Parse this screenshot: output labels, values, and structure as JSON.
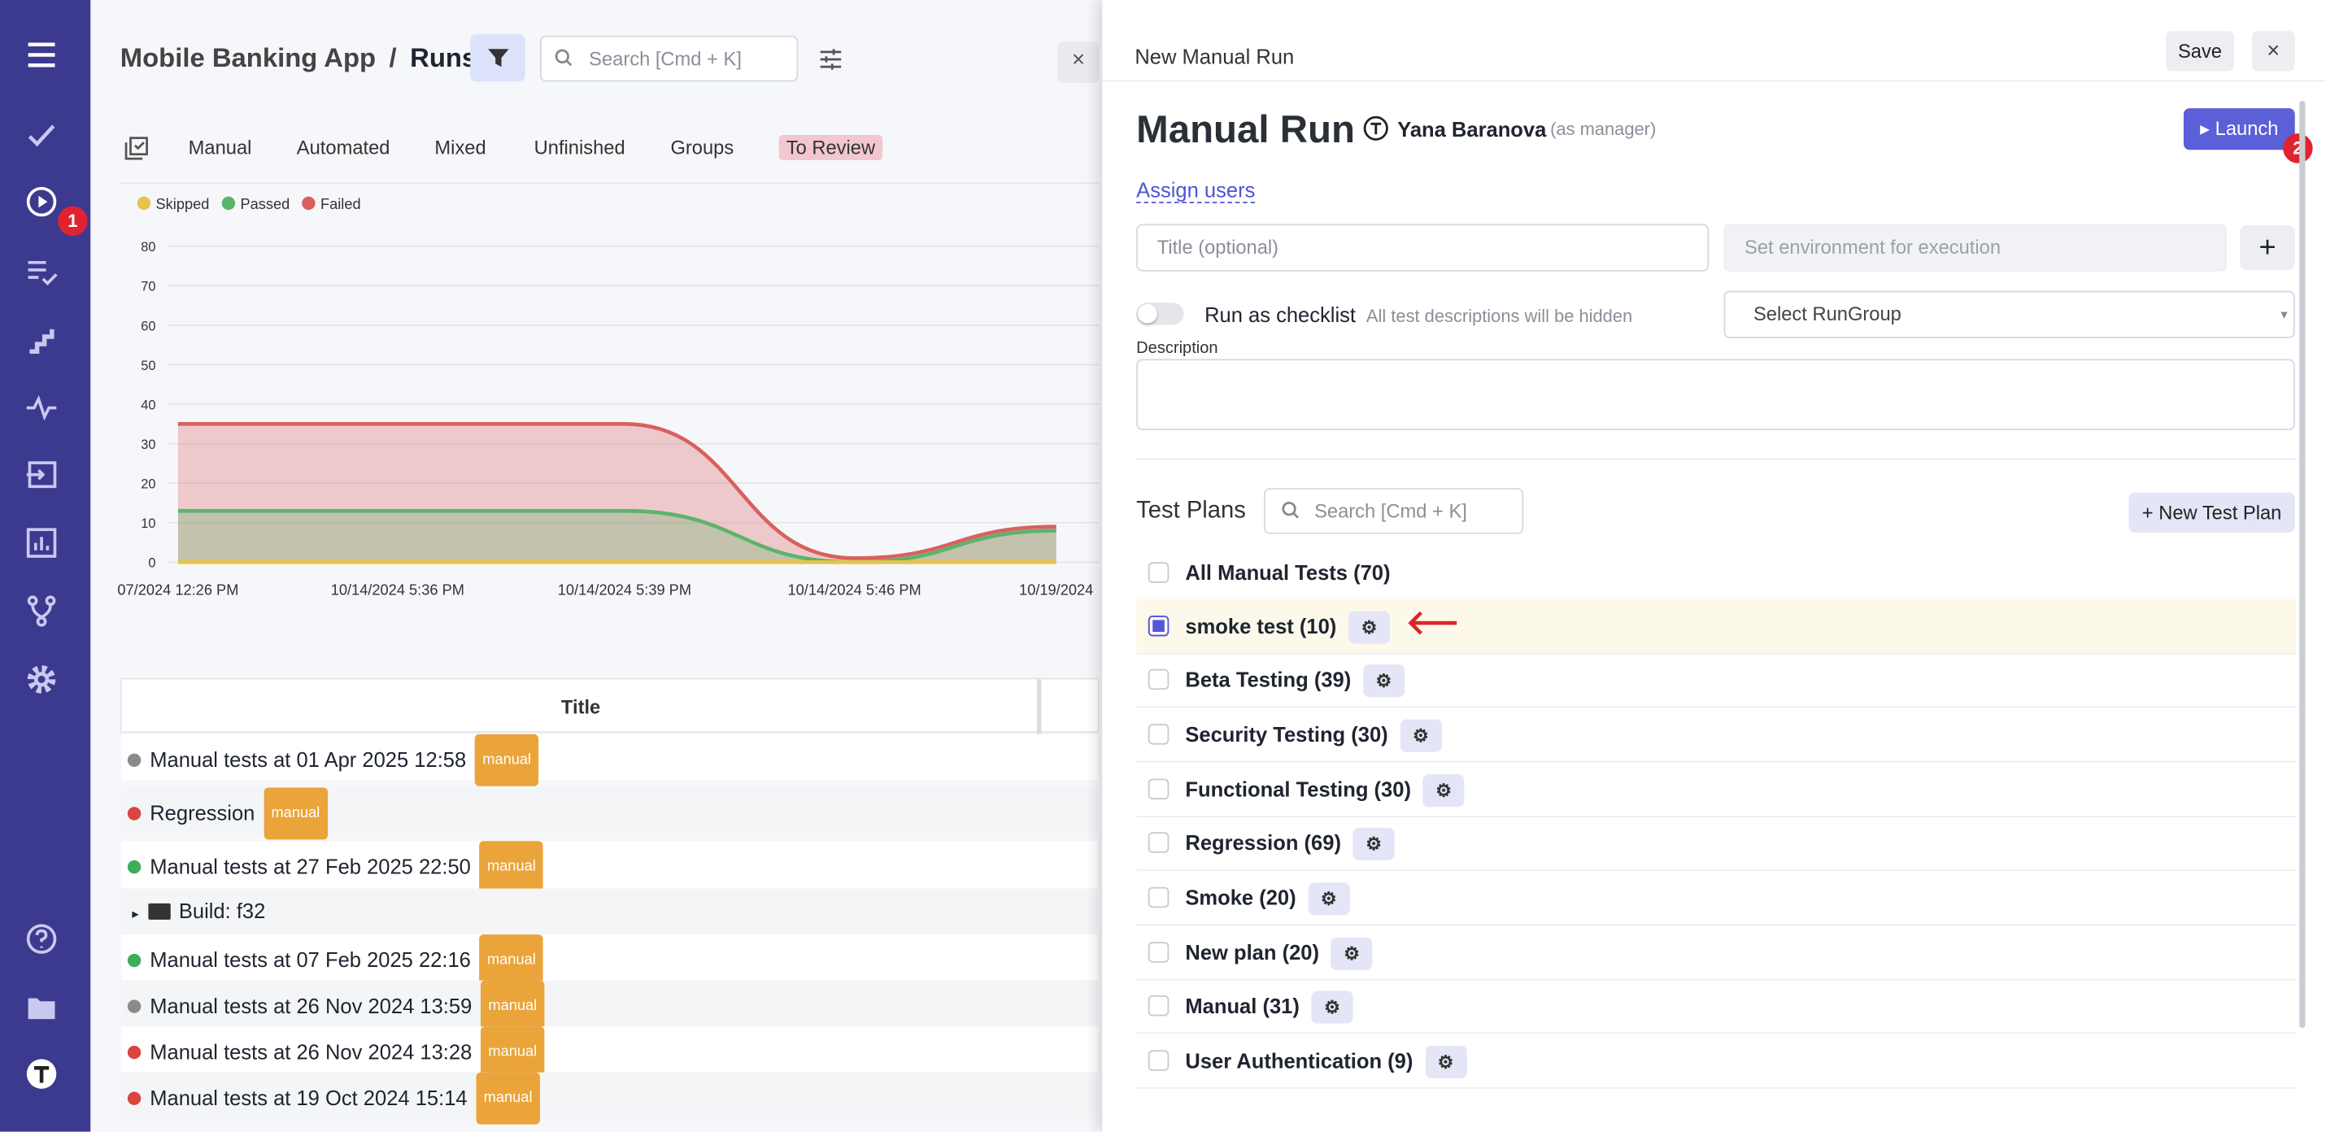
{
  "header": {
    "project": "Mobile Banking App",
    "separator": "/",
    "page": "Runs",
    "search_placeholder": "Search [Cmd + K]"
  },
  "sidebar": {
    "notification_badge": "1"
  },
  "tabs": [
    "Manual",
    "Automated",
    "Mixed",
    "Unfinished",
    "Groups",
    "To Review"
  ],
  "chart_data": {
    "type": "area",
    "categories": [
      "07/2024 12:26 PM",
      "10/14/2024 5:36 PM",
      "10/14/2024 5:39 PM",
      "10/14/2024 5:46 PM",
      "10/19/2024"
    ],
    "series": [
      {
        "name": "Skipped",
        "color": "#e8c34a",
        "values": [
          0,
          0,
          0,
          0,
          0
        ]
      },
      {
        "name": "Passed",
        "color": "#5cb36b",
        "values": [
          13,
          13,
          13,
          0,
          8
        ]
      },
      {
        "name": "Failed",
        "color": "#d9605f",
        "values": [
          35,
          35,
          35,
          1,
          9
        ]
      }
    ],
    "ylim": [
      0,
      80
    ],
    "yticks": [
      0,
      10,
      20,
      30,
      40,
      50,
      60,
      70,
      80
    ],
    "grid": true
  },
  "runs_table": {
    "header": "Title",
    "rows": [
      {
        "title": "Manual tests at 01 Apr 2025 12:58",
        "tag": "manual",
        "status": "#8a8a8a"
      },
      {
        "title": "Regression",
        "tag": "manual",
        "status": "#d9453f"
      },
      {
        "title": "Manual tests at 27 Feb 2025 22:50",
        "tag": "manual",
        "status": "#3fae5a"
      },
      {
        "title": "Build: f32",
        "kind": "folder"
      },
      {
        "title": "Manual tests at 07 Feb 2025 22:16",
        "tag": "manual",
        "status": "#3fae5a"
      },
      {
        "title": "Manual tests at 26 Nov 2024 13:59",
        "tag": "manual",
        "status": "#8a8a8a"
      },
      {
        "title": "Manual tests at 26 Nov 2024 13:28",
        "tag": "manual",
        "status": "#d9453f"
      },
      {
        "title": "Manual tests at 19 Oct 2024 15:14",
        "tag": "manual",
        "status": "#d9453f"
      }
    ]
  },
  "panel": {
    "heading": "New Manual Run",
    "save": "Save",
    "title": "Manual Run",
    "user": "Yana Baranova",
    "role": "(as manager)",
    "launch": "Launch",
    "launch_badge": "2",
    "assign": "Assign users",
    "title_placeholder": "Title (optional)",
    "env_placeholder": "Set environment for execution",
    "add": "+",
    "checklist": "Run as checklist",
    "checklist_hint": "All test descriptions will be hidden",
    "rungroup": "Select RunGroup",
    "description": "Description",
    "plans_heading": "Test Plans",
    "plans_search": "Search [Cmd + K]",
    "new_plan": "New Test Plan",
    "plans": [
      {
        "name": "All Manual Tests (70)",
        "checked": false,
        "settings": false
      },
      {
        "name": "smoke test (10)",
        "checked": true,
        "settings": true
      },
      {
        "name": "Beta Testing (39)",
        "checked": false,
        "settings": true
      },
      {
        "name": "Security Testing (30)",
        "checked": false,
        "settings": true
      },
      {
        "name": "Functional Testing (30)",
        "checked": false,
        "settings": true
      },
      {
        "name": "Regression (69)",
        "checked": false,
        "settings": true
      },
      {
        "name": "Smoke (20)",
        "checked": false,
        "settings": true
      },
      {
        "name": "New plan (20)",
        "checked": false,
        "settings": true
      },
      {
        "name": "Manual (31)",
        "checked": false,
        "settings": true
      },
      {
        "name": "User Authentication (9)",
        "checked": false,
        "settings": true
      }
    ]
  }
}
